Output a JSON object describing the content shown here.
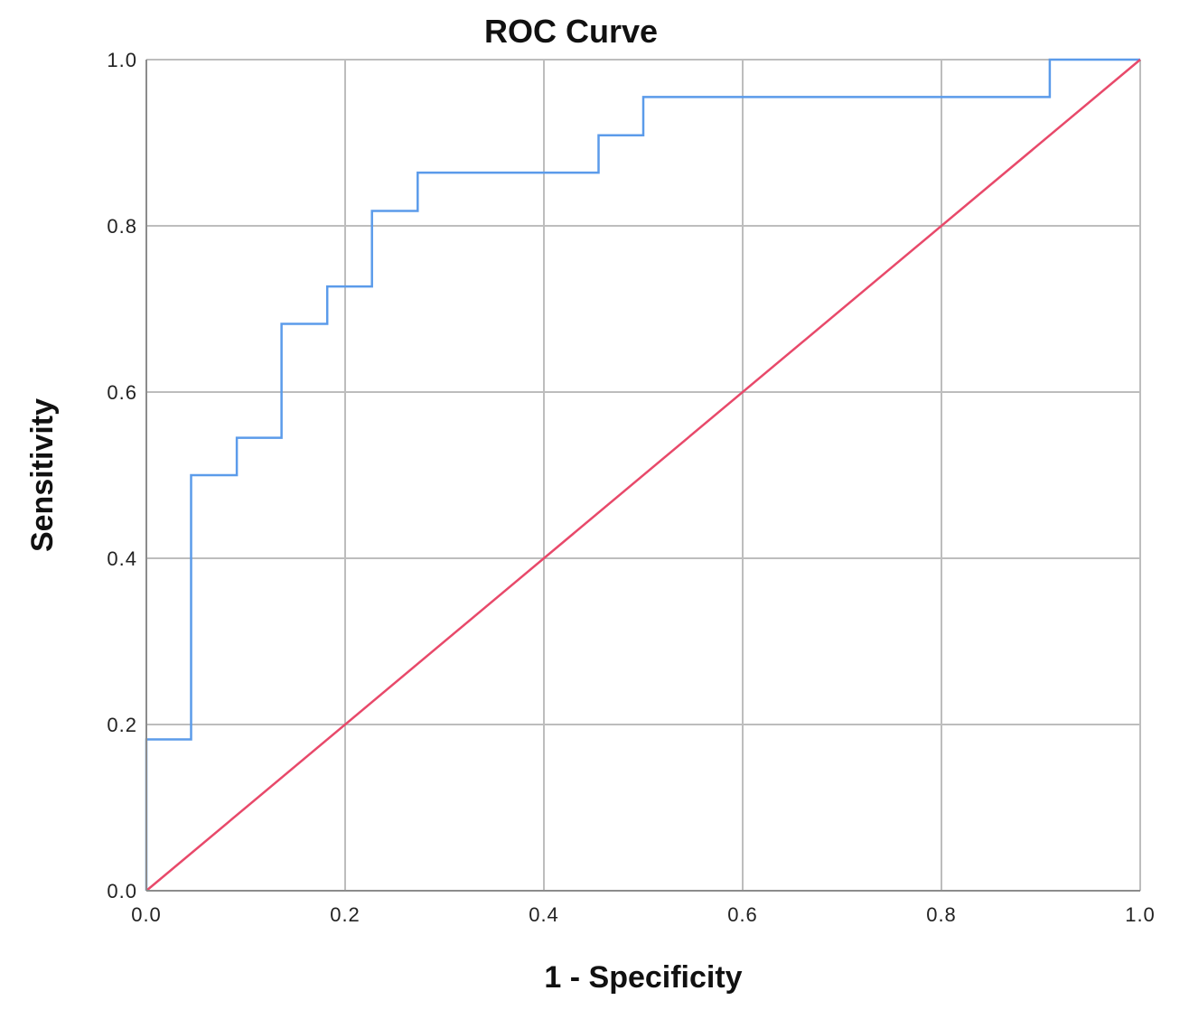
{
  "chart_data": {
    "type": "line",
    "title": "ROC Curve",
    "xlabel": "1 - Specificity",
    "ylabel": "Sensitivity",
    "xlim": [
      0,
      1
    ],
    "ylim": [
      0,
      1
    ],
    "grid": true,
    "legend": "none",
    "x_ticks": [
      "0.0",
      "0.2",
      "0.4",
      "0.6",
      "0.8",
      "1.0"
    ],
    "y_ticks": [
      "0.0",
      "0.2",
      "0.4",
      "0.6",
      "0.8",
      "1.0"
    ],
    "series": [
      {
        "color": "#5b9bea",
        "step": true,
        "x": [
          0,
          0,
          0.045,
          0.045,
          0.091,
          0.091,
          0.136,
          0.136,
          0.182,
          0.182,
          0.227,
          0.227,
          0.273,
          0.273,
          0.455,
          0.455,
          0.5,
          0.5,
          0.909,
          0.909,
          1.0
        ],
        "y": [
          0,
          0.182,
          0.182,
          0.5,
          0.5,
          0.545,
          0.545,
          0.682,
          0.682,
          0.727,
          0.727,
          0.818,
          0.818,
          0.864,
          0.864,
          0.909,
          0.909,
          0.955,
          0.955,
          1.0,
          1.0
        ]
      },
      {
        "color": "#e8496a",
        "step": false,
        "x": [
          0,
          1
        ],
        "y": [
          0,
          1
        ]
      }
    ]
  }
}
